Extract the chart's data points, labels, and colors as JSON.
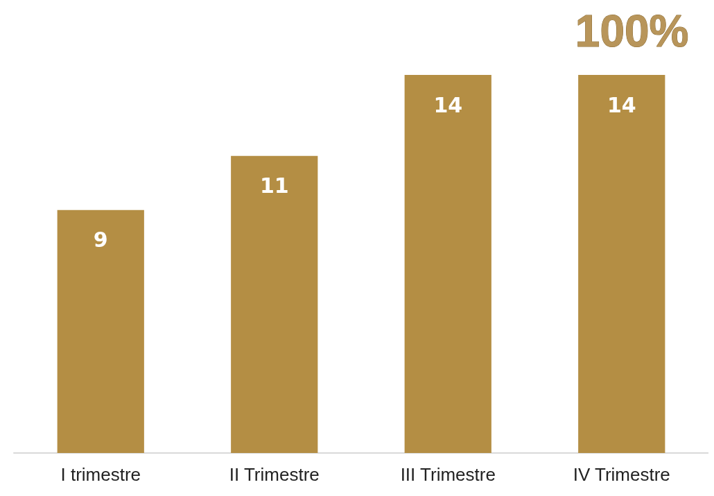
{
  "chart_data": {
    "type": "bar",
    "categories": [
      "I trimestre",
      "II Trimestre",
      "III Trimestre",
      "IV Trimestre"
    ],
    "values": [
      9,
      11,
      14,
      14
    ],
    "color": "#b48e44",
    "data_labels": true,
    "annotations": [
      "100%"
    ]
  }
}
